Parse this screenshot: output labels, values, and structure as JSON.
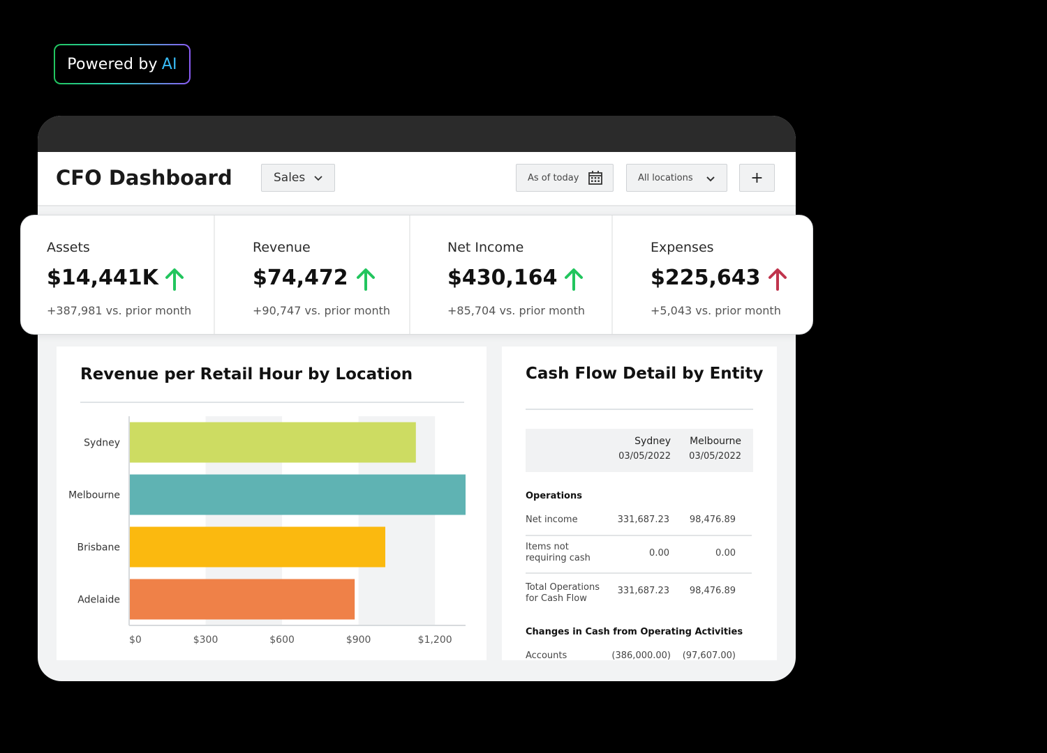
{
  "badge": {
    "prefix": "Powered by",
    "highlight": "AI"
  },
  "header": {
    "title": "CFO Dashboard",
    "report_select": "Sales",
    "date_filter": "As of today",
    "location_select": "All locations",
    "add_label": "+"
  },
  "kpis": [
    {
      "label": "Assets",
      "value": "$14,441K",
      "trend": "up",
      "delta": "+387,981 vs. prior month",
      "arrow_color": "#22c55e"
    },
    {
      "label": "Revenue",
      "value": "$74,472",
      "trend": "up",
      "delta": "+90,747 vs. prior month",
      "arrow_color": "#22c55e"
    },
    {
      "label": "Net Income",
      "value": "$430,164",
      "trend": "up",
      "delta": "+85,704 vs. prior month",
      "arrow_color": "#22c55e"
    },
    {
      "label": "Expenses",
      "value": "$225,643",
      "trend": "up",
      "delta": "+5,043 vs. prior month",
      "arrow_color": "#c0344d"
    }
  ],
  "revenue_panel": {
    "title": "Revenue per Retail Hour by Location"
  },
  "chart_data": {
    "type": "bar",
    "orientation": "horizontal",
    "title": "Revenue per Retail Hour by Location",
    "categories": [
      "Sydney",
      "Melbourne",
      "Brisbane",
      "Adelaide"
    ],
    "values": [
      1125,
      1320,
      1005,
      885
    ],
    "colors": [
      "#cddc62",
      "#5fb3b3",
      "#fbb90f",
      "#ef8148"
    ],
    "xlim": [
      0,
      1320
    ],
    "xticks": [
      0,
      300,
      600,
      900,
      1200
    ],
    "xtick_labels": [
      "$0",
      "$300",
      "$600",
      "$900",
      "$1,200"
    ],
    "grid": "alternating vertical bands",
    "legend": "none"
  },
  "cash_panel": {
    "title": "Cash Flow Detail by Entity",
    "columns": [
      {
        "name": "Sydney",
        "date": "03/05/2022"
      },
      {
        "name": "Melbourne",
        "date": "03/05/2022"
      }
    ],
    "sections": [
      {
        "heading": "Operations",
        "rows": [
          {
            "label": "Net income",
            "values": [
              "331,687.23",
              "98,476.89"
            ]
          },
          {
            "label_lines": [
              "Items not",
              "requiring cash"
            ],
            "values": [
              "0.00",
              "0.00"
            ]
          },
          {
            "label_lines": [
              "Total Operations",
              "for Cash Flow"
            ],
            "values": [
              "331,687.23",
              "98,476.89"
            ]
          }
        ]
      },
      {
        "heading": "Changes in Cash from Operating Activities",
        "rows": [
          {
            "label": "Accounts",
            "values": [
              "(386,000.00)",
              "(97,607.00)"
            ]
          }
        ]
      }
    ]
  }
}
